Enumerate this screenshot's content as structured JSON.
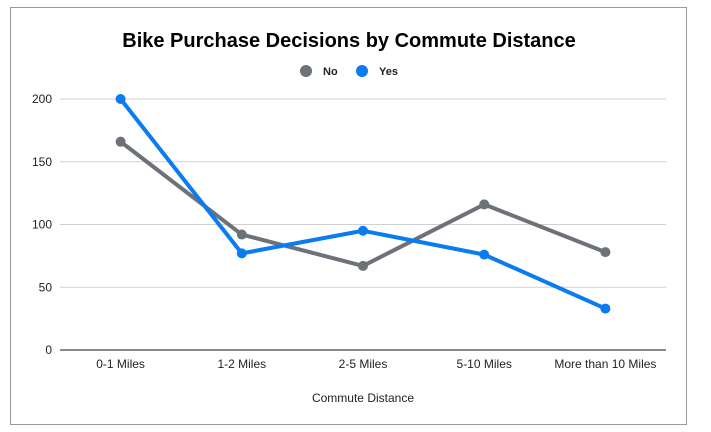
{
  "chart_data": {
    "type": "line",
    "title": "Bike Purchase Decisions by Commute Distance",
    "xlabel": "Commute Distance",
    "ylabel": "",
    "categories": [
      "0-1 Miles",
      "1-2 Miles",
      "2-5 Miles",
      "5-10 Miles",
      "More than 10 Miles"
    ],
    "ylim": [
      0,
      200
    ],
    "yticks": [
      "0",
      "50",
      "100",
      "150",
      "200"
    ],
    "grid": true,
    "legend_position": "top-center",
    "series": [
      {
        "name": "No",
        "color": "#6d7178",
        "values": [
          166,
          92,
          67,
          116,
          78
        ]
      },
      {
        "name": "Yes",
        "color": "#0a7cf0",
        "values": [
          200,
          77,
          95,
          76,
          33
        ]
      }
    ]
  }
}
